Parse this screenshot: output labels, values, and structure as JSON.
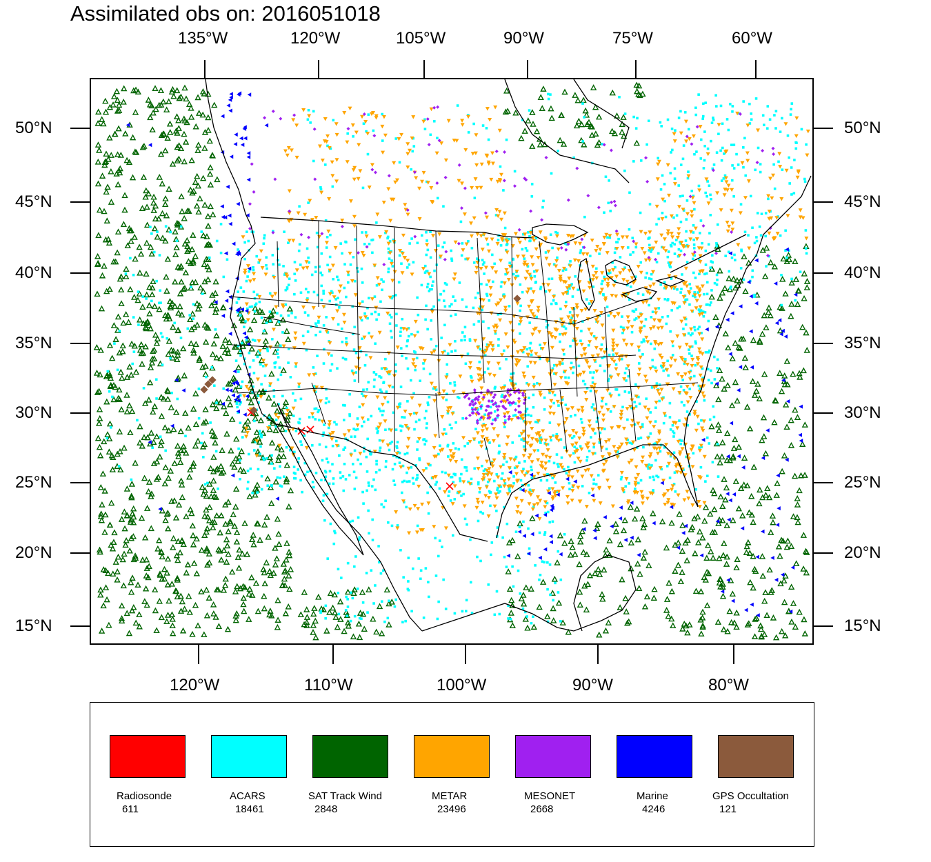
{
  "title": "Assimilated obs on: 2016051018",
  "axes": {
    "top_lon_labels": [
      "135°W",
      "120°W",
      "105°W",
      "90°W",
      "75°W",
      "60°W"
    ],
    "bottom_lon_labels": [
      "120°W",
      "110°W",
      "100°W",
      "90°W",
      "80°W"
    ],
    "left_lat_labels": [
      "50°N",
      "45°N",
      "40°N",
      "35°N",
      "30°N",
      "25°N",
      "20°N",
      "15°N"
    ],
    "right_lat_labels": [
      "50°N",
      "45°N",
      "40°N",
      "35°N",
      "30°N",
      "25°N",
      "20°N",
      "15°N"
    ]
  },
  "legend": [
    {
      "name": "Radiosonde",
      "count": "611",
      "color": "#ff0000"
    },
    {
      "name": "ACARS",
      "count": "18461",
      "color": "#00ffff"
    },
    {
      "name": "SAT Track Wind",
      "count": "2848",
      "color": "#006400"
    },
    {
      "name": "METAR",
      "count": "23496",
      "color": "#ffa500"
    },
    {
      "name": "MESONET",
      "count": "2668",
      "color": "#a020f0"
    },
    {
      "name": "Marine",
      "count": "4246",
      "color": "#0000ff"
    },
    {
      "name": "GPS Occultation",
      "count": "121",
      "color": "#8b5a3c"
    }
  ]
}
